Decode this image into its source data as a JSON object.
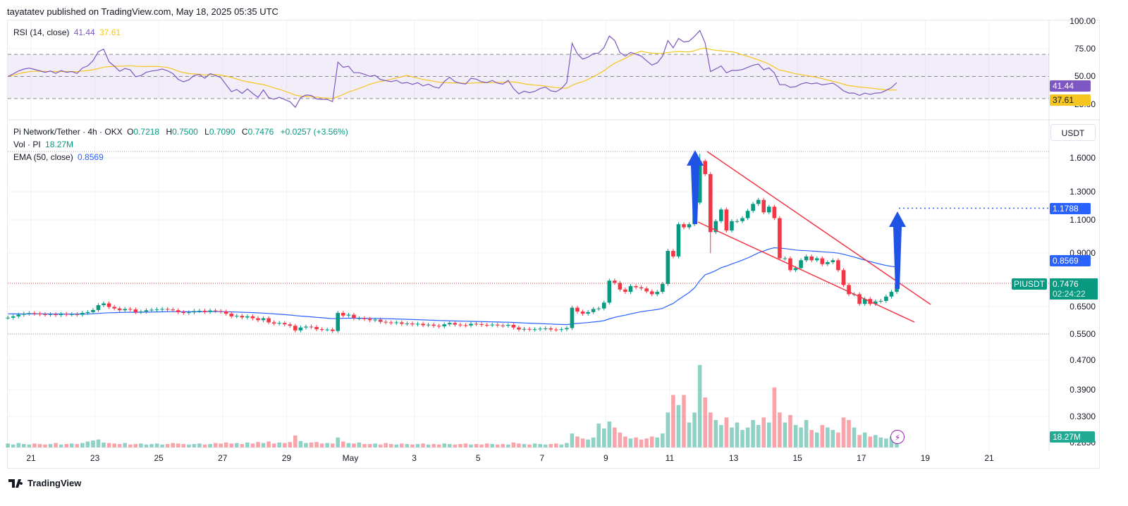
{
  "header": {
    "published": "tayatatev published on TradingView.com, May 18, 2025 05:35 UTC"
  },
  "rsi": {
    "label": "RSI (14, close)",
    "value": "41.44",
    "ma_value": "37.61",
    "axis": [
      "100.00",
      "75.00",
      "50.00",
      "25.00"
    ],
    "levels": [
      70,
      50,
      30
    ],
    "color": "#7e57c2",
    "ma_color": "#f7c520"
  },
  "legend": {
    "symbol": "Pi Network/Tether · 4h · OKX",
    "o_label": "O",
    "o": "0.7218",
    "h_label": "H",
    "h": "0.7500",
    "l_label": "L",
    "l": "0.7090",
    "c_label": "C",
    "c": "0.7476",
    "change": "+0.0257 (+3.56%)",
    "vol_label": "Vol · PI",
    "vol": "18.27M",
    "ema_label": "EMA (50, close)",
    "ema": "0.8569"
  },
  "price_axis": {
    "currency": "USDT",
    "ticks": [
      "1.6000",
      "1.3000",
      "1.1000",
      "0.9000",
      "0.6500",
      "0.5500",
      "0.4700",
      "0.3900",
      "0.3300",
      "0.2850"
    ],
    "scale": "log",
    "target_label": "1.1788",
    "ema_label": "0.8569",
    "last_symbol": "PIUSDT",
    "last_price": "0.7476",
    "countdown": "02:24:22",
    "volume_label": "18.27M"
  },
  "x_axis": {
    "labels": [
      "21",
      "23",
      "25",
      "27",
      "29",
      "May",
      "3",
      "5",
      "7",
      "9",
      "11",
      "13",
      "15",
      "17",
      "19",
      "21"
    ]
  },
  "colors": {
    "up": "#089981",
    "down": "#f23645",
    "ema": "#2962ff",
    "wedge": "#f23645",
    "arrow": "#1e53e5"
  },
  "chart_data": {
    "type": "candlestick",
    "interval": "4h",
    "period": "Apr 20 – May 18, 2025",
    "y_scale": "log",
    "closes": [
      0.607,
      0.612,
      0.618,
      0.622,
      0.624,
      0.622,
      0.62,
      0.618,
      0.62,
      0.617,
      0.621,
      0.619,
      0.62,
      0.618,
      0.625,
      0.628,
      0.636,
      0.655,
      0.662,
      0.648,
      0.642,
      0.635,
      0.64,
      0.638,
      0.628,
      0.63,
      0.635,
      0.637,
      0.638,
      0.64,
      0.638,
      0.635,
      0.628,
      0.625,
      0.627,
      0.632,
      0.633,
      0.629,
      0.634,
      0.632,
      0.63,
      0.622,
      0.612,
      0.614,
      0.608,
      0.612,
      0.605,
      0.598,
      0.605,
      0.59,
      0.586,
      0.588,
      0.583,
      0.578,
      0.562,
      0.572,
      0.575,
      0.574,
      0.566,
      0.565,
      0.565,
      0.56,
      0.625,
      0.615,
      0.618,
      0.605,
      0.605,
      0.602,
      0.598,
      0.6,
      0.592,
      0.59,
      0.588,
      0.59,
      0.585,
      0.586,
      0.583,
      0.585,
      0.58,
      0.582,
      0.578,
      0.576,
      0.583,
      0.588,
      0.582,
      0.58,
      0.579,
      0.585,
      0.584,
      0.581,
      0.58,
      0.582,
      0.579,
      0.578,
      0.581,
      0.572,
      0.565,
      0.567,
      0.565,
      0.566,
      0.568,
      0.569,
      0.565,
      0.564,
      0.566,
      0.57,
      0.645,
      0.63,
      0.622,
      0.628,
      0.64,
      0.642,
      0.665,
      0.76,
      0.75,
      0.72,
      0.71,
      0.735,
      0.73,
      0.725,
      0.712,
      0.7,
      0.71,
      0.745,
      0.91,
      0.88,
      1.07,
      1.05,
      1.07,
      1.22,
      1.57,
      1.45,
      1.02,
      1.09,
      1.17,
      1.03,
      1.09,
      1.09,
      1.11,
      1.16,
      1.21,
      1.24,
      1.15,
      1.19,
      1.11,
      0.87,
      0.87,
      0.81,
      0.82,
      0.86,
      0.88,
      0.86,
      0.87,
      0.84,
      0.85,
      0.86,
      0.81,
      0.74,
      0.7,
      0.7,
      0.66,
      0.68,
      0.66,
      0.67,
      0.672,
      0.69,
      0.71,
      0.7476
    ],
    "volumes_m": [
      8,
      6,
      9,
      7,
      6,
      8,
      7,
      6,
      7,
      9,
      6,
      7,
      8,
      7,
      9,
      12,
      14,
      16,
      10,
      9,
      8,
      7,
      9,
      6,
      7,
      8,
      6,
      7,
      8,
      6,
      7,
      9,
      8,
      7,
      6,
      7,
      8,
      6,
      7,
      9,
      8,
      10,
      8,
      9,
      7,
      10,
      8,
      11,
      9,
      12,
      8,
      10,
      9,
      11,
      24,
      13,
      9,
      10,
      11,
      8,
      9,
      8,
      20,
      12,
      9,
      8,
      10,
      7,
      7,
      8,
      6,
      9,
      7,
      6,
      8,
      7,
      6,
      7,
      8,
      6,
      7,
      6,
      8,
      7,
      6,
      7,
      8,
      6,
      7,
      6,
      8,
      7,
      6,
      7,
      6,
      10,
      8,
      7,
      6,
      8,
      7,
      6,
      7,
      8,
      6,
      9,
      28,
      22,
      18,
      16,
      20,
      48,
      38,
      52,
      40,
      30,
      22,
      18,
      20,
      16,
      18,
      22,
      20,
      28,
      70,
      105,
      85,
      105,
      50,
      70,
      165,
      100,
      70,
      55,
      45,
      60,
      40,
      50,
      35,
      40,
      55,
      45,
      60,
      50,
      120,
      70,
      50,
      65,
      45,
      40,
      55,
      35,
      30,
      45,
      40,
      35,
      30,
      60,
      55,
      40,
      25,
      30,
      22,
      25,
      20,
      18,
      22,
      18.27
    ],
    "ema_period": 50,
    "rsi_period": 14,
    "target_price": 1.1788,
    "wedge": {
      "upper": [
        [
          1.64,
          "May 12"
        ],
        [
          0.66,
          "May 19"
        ]
      ],
      "lower": [
        [
          1.08,
          "May 11"
        ],
        [
          0.59,
          "May 19"
        ]
      ]
    }
  }
}
